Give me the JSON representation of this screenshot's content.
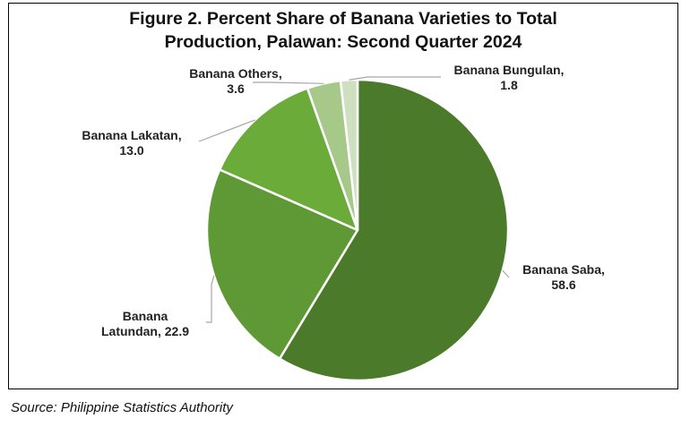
{
  "chart_data": {
    "type": "pie",
    "title_line1": "Figure 2. Percent Share of Banana Varieties to Total",
    "title_line2": "Production, Palawan: Second Quarter 2024",
    "slices": [
      {
        "label": "Banana Saba,",
        "value": 58.6,
        "value_text": "58.6",
        "color": "#4a7a2a"
      },
      {
        "label": "Banana Latundan,",
        "value": 22.9,
        "value_text": "22.9",
        "color": "#5f9936"
      },
      {
        "label": "Banana Lakatan,",
        "value": 13.0,
        "value_text": "13.0",
        "color": "#6aab3a"
      },
      {
        "label": "Banana Others,",
        "value": 3.6,
        "value_text": "3.6",
        "color": "#a6c98a"
      },
      {
        "label": "Banana Bungulan,",
        "value": 1.8,
        "value_text": "1.8",
        "color": "#cfe0c0"
      }
    ],
    "legend": "none"
  },
  "source": "Source: Philippine Statistics Authority"
}
